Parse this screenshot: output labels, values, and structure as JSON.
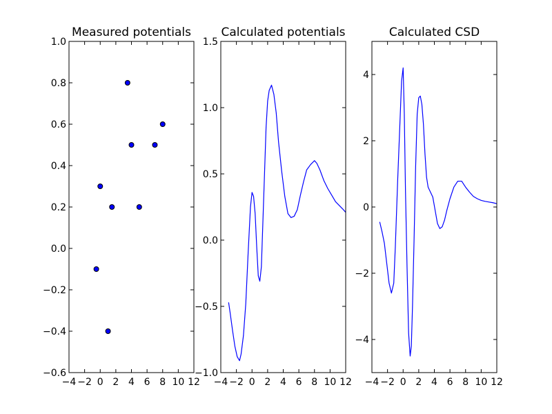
{
  "colors": {
    "line": "#0000ff",
    "marker_fill": "#0000ff",
    "marker_edge": "#000000"
  },
  "chart_data": [
    {
      "type": "scatter",
      "title": "Measured potentials",
      "xlim": [
        -4,
        12
      ],
      "ylim": [
        -0.6,
        1.0
      ],
      "xticks": [
        -4,
        -2,
        0,
        2,
        4,
        6,
        8,
        10,
        12
      ],
      "xtick_labels": [
        "−4",
        "−2",
        "0",
        "2",
        "4",
        "6",
        "8",
        "10",
        "12"
      ],
      "yticks": [
        -0.6,
        -0.4,
        -0.2,
        0.0,
        0.2,
        0.4,
        0.6,
        0.8,
        1.0
      ],
      "ytick_labels": [
        "−0.6",
        "−0.4",
        "−0.2",
        "0.0",
        "0.2",
        "0.4",
        "0.6",
        "0.8",
        "1.0"
      ],
      "grid": false,
      "points": [
        {
          "x": 3.5,
          "y": 0.8
        },
        {
          "x": 4.0,
          "y": 0.5
        },
        {
          "x": 7.0,
          "y": 0.5
        },
        {
          "x": 8.0,
          "y": 0.6
        },
        {
          "x": 0.0,
          "y": 0.3
        },
        {
          "x": 1.5,
          "y": 0.2
        },
        {
          "x": 5.0,
          "y": 0.2
        },
        {
          "x": -0.5,
          "y": -0.1
        },
        {
          "x": 1.0,
          "y": -0.4
        }
      ]
    },
    {
      "type": "line",
      "title": "Calculated potentials",
      "xlim": [
        -4,
        12
      ],
      "ylim": [
        -1.0,
        1.5
      ],
      "xticks": [
        -4,
        -2,
        0,
        2,
        4,
        6,
        8,
        10,
        12
      ],
      "xtick_labels": [
        "−4",
        "−2",
        "0",
        "2",
        "4",
        "6",
        "8",
        "10",
        "12"
      ],
      "yticks": [
        -1.0,
        -0.5,
        0.0,
        0.5,
        1.0,
        1.5
      ],
      "ytick_labels": [
        "−1.0",
        "−0.5",
        "0.0",
        "0.5",
        "1.0",
        "1.5"
      ],
      "grid": false,
      "x": [
        -3.0,
        -2.8,
        -2.5,
        -2.2,
        -1.9,
        -1.6,
        -1.4,
        -1.1,
        -0.8,
        -0.5,
        -0.2,
        0.0,
        0.2,
        0.4,
        0.6,
        0.8,
        1.0,
        1.2,
        1.4,
        1.6,
        1.8,
        2.0,
        2.2,
        2.5,
        2.8,
        3.1,
        3.4,
        3.8,
        4.2,
        4.6,
        5.0,
        5.4,
        5.8,
        6.2,
        6.6,
        7.0,
        7.5,
        8.0,
        8.3,
        8.7,
        9.2,
        9.7,
        10.2,
        10.7,
        11.2,
        11.7,
        12.0
      ],
      "y": [
        -0.47,
        -0.55,
        -0.68,
        -0.8,
        -0.88,
        -0.91,
        -0.86,
        -0.72,
        -0.48,
        -0.1,
        0.25,
        0.36,
        0.33,
        0.2,
        -0.05,
        -0.27,
        -0.31,
        -0.2,
        0.15,
        0.5,
        0.85,
        1.05,
        1.13,
        1.17,
        1.1,
        0.96,
        0.74,
        0.52,
        0.33,
        0.2,
        0.17,
        0.18,
        0.23,
        0.34,
        0.44,
        0.53,
        0.57,
        0.6,
        0.58,
        0.53,
        0.45,
        0.39,
        0.34,
        0.29,
        0.26,
        0.23,
        0.21
      ]
    },
    {
      "type": "line",
      "title": "Calculated CSD",
      "xlim": [
        -4,
        12
      ],
      "ylim": [
        -5.0,
        5.0
      ],
      "xticks": [
        -4,
        -2,
        0,
        2,
        4,
        6,
        8,
        10,
        12
      ],
      "xtick_labels": [
        "−4",
        "−2",
        "0",
        "2",
        "4",
        "6",
        "8",
        "10",
        "12"
      ],
      "yticks": [
        -4,
        -2,
        0,
        2,
        4
      ],
      "ytick_labels": [
        "−4",
        "−2",
        "0",
        "2",
        "4"
      ],
      "grid": false,
      "x": [
        -3.0,
        -2.7,
        -2.4,
        -2.1,
        -1.8,
        -1.5,
        -1.2,
        -1.0,
        -0.7,
        -0.4,
        -0.2,
        0.0,
        0.15,
        0.3,
        0.5,
        0.7,
        0.9,
        1.05,
        1.2,
        1.4,
        1.6,
        1.8,
        2.0,
        2.2,
        2.4,
        2.6,
        2.8,
        3.0,
        3.2,
        3.5,
        3.8,
        4.1,
        4.4,
        4.7,
        5.0,
        5.3,
        5.6,
        6.0,
        6.5,
        7.0,
        7.5,
        8.0,
        8.5,
        9.0,
        9.5,
        10.0,
        10.5,
        11.0,
        11.5,
        12.0
      ],
      "y": [
        -0.45,
        -0.75,
        -1.1,
        -1.7,
        -2.3,
        -2.6,
        -2.3,
        -1.2,
        0.8,
        2.6,
        3.8,
        4.2,
        2.8,
        0.5,
        -1.8,
        -3.8,
        -4.5,
        -4.2,
        -3.0,
        -1.0,
        1.2,
        2.8,
        3.3,
        3.35,
        3.1,
        2.5,
        1.6,
        0.9,
        0.6,
        0.45,
        0.3,
        -0.1,
        -0.5,
        -0.65,
        -0.6,
        -0.4,
        -0.1,
        0.25,
        0.6,
        0.78,
        0.78,
        0.6,
        0.45,
        0.32,
        0.25,
        0.2,
        0.17,
        0.15,
        0.13,
        0.1
      ]
    }
  ]
}
